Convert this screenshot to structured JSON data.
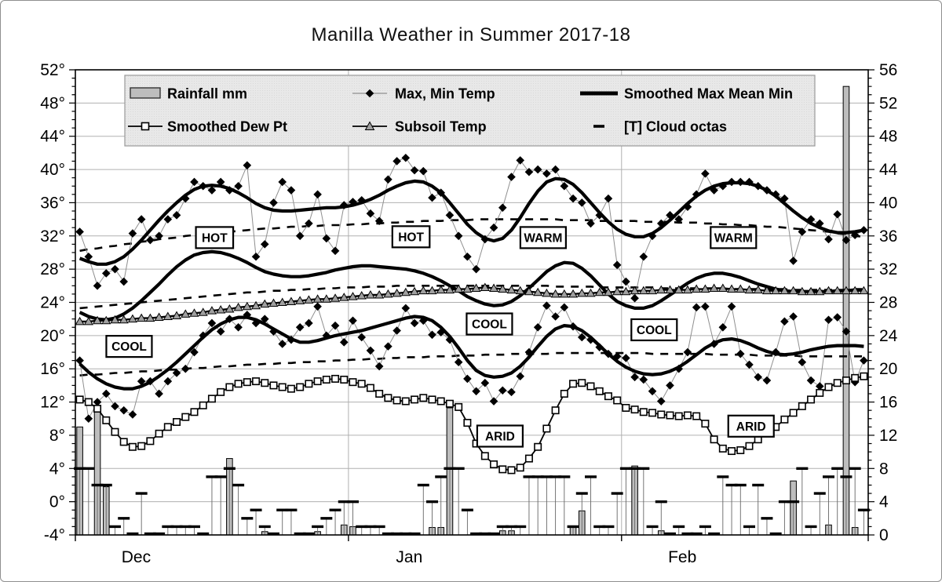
{
  "title": "Manilla Weather in Summer 2017-18",
  "legend": {
    "rows": [
      [
        {
          "name": "rainfall",
          "label": "Rainfall mm"
        },
        {
          "name": "maxmin",
          "label": "Max, Min Temp"
        },
        {
          "name": "smoothed",
          "label": "Smoothed  Max Mean Min"
        }
      ],
      [
        {
          "name": "dew",
          "label": "Smoothed Dew Pt"
        },
        {
          "name": "subsoil",
          "label": "Subsoil Temp"
        },
        {
          "name": "octas",
          "label": "[T] Cloud octas"
        }
      ]
    ]
  },
  "colors": {
    "bar_fill": "#bdbdbd",
    "grid": "#b0b0b0",
    "legend_bg": "#e8e8e8",
    "legend_border": "#9a9a9a",
    "subsoil_fill": "#a0a0a0",
    "connector": "#8f8f8f",
    "ink": "#000000"
  },
  "chart_data": {
    "type": "combo-weather",
    "title": "Manilla Weather in Summer 2017-18",
    "y_left": {
      "min": -4,
      "max": 52,
      "major_step": 4,
      "minor_step": 1,
      "tick_labels": [
        "52°",
        "48°",
        "44°",
        "40°",
        "36°",
        "32°",
        "28°",
        "24°",
        "20°",
        "16°",
        "12°",
        "8°",
        "4°",
        "0°",
        "-4°"
      ]
    },
    "y_right": {
      "min": 0,
      "max": 56,
      "major_step": 4,
      "minor_step": 1,
      "tick_labels": [
        "56",
        "52",
        "48",
        "44",
        "40",
        "36",
        "32",
        "28",
        "24",
        "20",
        "16",
        "12",
        "8",
        "4",
        "0"
      ]
    },
    "months": [
      {
        "label": "Dec",
        "days": 31
      },
      {
        "label": "Jan",
        "days": 31
      },
      {
        "label": "Feb",
        "days": 28
      }
    ],
    "series": {
      "rainfall_mm": [
        13,
        0,
        15.5,
        5.8,
        0,
        0,
        0,
        0,
        0,
        0,
        0,
        0,
        0,
        0,
        0,
        0,
        0,
        9.2,
        0,
        0,
        0,
        0.4,
        0,
        0,
        0,
        0,
        0,
        0.4,
        0,
        0,
        1.2,
        1,
        0,
        0,
        0,
        0,
        0,
        0,
        0,
        0,
        0.9,
        0.9,
        15.3,
        0,
        0,
        0,
        0,
        0,
        0.5,
        0.5,
        0,
        0,
        0,
        0,
        0,
        0,
        0.9,
        2.9,
        0,
        0,
        0,
        0,
        0,
        8.3,
        0,
        0,
        0.5,
        0,
        0,
        0,
        0,
        0,
        0,
        0,
        0,
        0,
        0,
        0,
        0,
        0,
        0,
        6.5,
        0,
        0,
        0,
        1.2,
        0,
        54,
        0.9,
        0
      ],
      "max_temp": [
        32.5,
        29.5,
        26,
        27.5,
        28,
        26.5,
        32.3,
        34,
        31.5,
        32,
        34,
        34.5,
        36.5,
        38.5,
        38,
        37.5,
        38.5,
        37.5,
        38,
        40.5,
        29.5,
        31,
        36,
        38.5,
        37.5,
        32,
        33.5,
        37,
        31.7,
        30.2,
        35.7,
        36.1,
        36.3,
        34.7,
        33.8,
        38.8,
        41,
        41.4,
        39.9,
        39.8,
        36.6,
        37.2,
        34.5,
        32,
        29.5,
        28,
        31.6,
        33,
        35.4,
        39.1,
        41.1,
        39.7,
        40,
        39.5,
        40,
        38,
        36.5,
        36,
        33.5,
        34.5,
        36.5,
        28.5,
        26.5,
        24.5,
        29.5,
        32,
        33.5,
        34.5,
        34,
        35.5,
        37,
        39.5,
        37.5,
        38,
        38.5,
        38.5,
        38.5,
        38,
        37.5,
        37,
        36.5,
        29,
        32.5,
        34,
        33.5,
        31.6,
        34.6,
        31.5,
        32.1,
        32.7
      ],
      "min_temp": [
        17,
        10,
        12,
        13,
        11.5,
        11,
        10.5,
        14.5,
        14.5,
        13,
        14.5,
        15.5,
        16,
        18,
        20,
        21.5,
        20.5,
        22,
        21,
        22.5,
        21.5,
        22,
        20.5,
        19,
        19.5,
        21,
        21.5,
        23.5,
        20,
        21.2,
        19.2,
        21.8,
        19.8,
        18.2,
        16.3,
        18.7,
        20.6,
        23.3,
        21.5,
        21.8,
        20.1,
        20.4,
        19.5,
        16.8,
        14.8,
        13.3,
        14.3,
        12.1,
        13.4,
        13.2,
        15.1,
        18,
        21,
        23.6,
        22.3,
        23.4,
        21.1,
        19.8,
        19.5,
        18.6,
        17.8,
        17.5,
        17.3,
        15,
        14.7,
        13.3,
        12.1,
        14,
        16,
        18,
        23.4,
        23.5,
        19,
        21,
        23.5,
        17.8,
        16.5,
        15,
        14.6,
        18,
        21.7,
        22.3,
        16.8,
        14.6,
        13.9,
        21.9,
        22.2,
        20.5,
        14.4,
        17
      ],
      "smoothed_max": [
        29.3,
        28.9,
        28.6,
        28.6,
        28.9,
        29.5,
        30.4,
        31.5,
        32.7,
        33.9,
        35,
        36,
        36.9,
        37.6,
        38,
        38.1,
        38,
        37.7,
        37.2,
        36.6,
        35.9,
        35.4,
        35.1,
        35,
        35,
        35.1,
        35.2,
        35.3,
        35.4,
        35.4,
        35.5,
        35.7,
        36,
        36.4,
        36.9,
        37.5,
        38,
        38.4,
        38.6,
        38.5,
        38,
        37.2,
        36,
        34.7,
        33.4,
        32.4,
        31.7,
        31.4,
        31.7,
        32.7,
        34.2,
        35.9,
        37.4,
        38.5,
        38.9,
        38.8,
        38.2,
        37.2,
        36,
        34.8,
        33.7,
        32.8,
        32.2,
        31.9,
        31.9,
        32.3,
        33,
        33.9,
        34.9,
        35.9,
        36.8,
        37.5,
        38,
        38.3,
        38.4,
        38.4,
        38.3,
        38,
        37.5,
        36.8,
        35.9,
        35,
        34.2,
        33.5,
        33,
        32.6,
        32.4,
        32.4,
        32.5,
        32.7
      ],
      "smoothed_mean": [
        22.8,
        22.3,
        22,
        21.9,
        22.1,
        22.6,
        23.3,
        24.2,
        25.2,
        26.2,
        27.3,
        28.3,
        29.1,
        29.7,
        30,
        30.1,
        30,
        29.7,
        29.3,
        28.8,
        28.2,
        27.7,
        27.4,
        27.2,
        27.1,
        27.1,
        27.2,
        27.4,
        27.6,
        27.9,
        28.1,
        28.3,
        28.4,
        28.4,
        28.3,
        28.2,
        28.1,
        28,
        27.8,
        27.5,
        27.1,
        26.6,
        26,
        25.4,
        24.7,
        24.2,
        23.8,
        23.6,
        23.7,
        24.1,
        24.8,
        25.7,
        26.7,
        27.7,
        28.4,
        28.8,
        28.7,
        28.1,
        27.2,
        26.1,
        25,
        24.1,
        23.6,
        23.3,
        23.3,
        23.6,
        24.2,
        24.9,
        25.6,
        26.3,
        26.9,
        27.3,
        27.5,
        27.5,
        27.3,
        27,
        26.6,
        26.2,
        25.9,
        25.6,
        25.4,
        25.3,
        25.3,
        25.3,
        25.3,
        25.3,
        25.4,
        25.4,
        25.5,
        25.5
      ],
      "smoothed_min": [
        16.6,
        15.6,
        14.8,
        14.2,
        13.8,
        13.6,
        13.6,
        13.9,
        14.4,
        15.1,
        15.9,
        16.8,
        17.8,
        18.8,
        19.8,
        20.7,
        21.4,
        21.9,
        22.2,
        22.2,
        21.9,
        21.4,
        20.8,
        20.2,
        19.6,
        19.2,
        19.2,
        19.4,
        19.7,
        20,
        20.2,
        20.4,
        20.6,
        20.9,
        21.2,
        21.5,
        21.8,
        22.1,
        22.3,
        22.2,
        21.8,
        21,
        19.9,
        18.5,
        17,
        15.8,
        15.2,
        15,
        15.1,
        15.5,
        16.3,
        17.4,
        18.7,
        19.9,
        20.8,
        21.2,
        21.1,
        20.6,
        19.8,
        18.8,
        17.8,
        16.9,
        16.2,
        15.7,
        15.4,
        15.3,
        15.4,
        15.7,
        16.2,
        16.9,
        17.7,
        18.5,
        19.1,
        19.5,
        19.6,
        19.4,
        19,
        18.5,
        18.1,
        17.8,
        17.7,
        17.8,
        18,
        18.3,
        18.5,
        18.7,
        18.8,
        18.8,
        18.8,
        18.7
      ],
      "normal_max_dashed": [
        30.2,
        30.4,
        30.5,
        30.7,
        30.8,
        31,
        31.1,
        31.3,
        31.4,
        31.6,
        31.7,
        31.8,
        32,
        32.1,
        32.2,
        32.3,
        32.4,
        32.5,
        32.6,
        32.7,
        32.8,
        32.9,
        32.9,
        33,
        33.1,
        33.1,
        33.2,
        33.2,
        33.3,
        33.3,
        33.3,
        33.4,
        33.4,
        33.5,
        33.5,
        33.6,
        33.6,
        33.7,
        33.7,
        33.8,
        33.8,
        33.8,
        33.9,
        33.9,
        33.9,
        34,
        34,
        34,
        34,
        34,
        34,
        34,
        34,
        34,
        34,
        33.9,
        33.9,
        33.9,
        33.9,
        33.8,
        33.8,
        33.8,
        33.8,
        33.8,
        33.7,
        33.7,
        33.7,
        33.7,
        33.6,
        33.6,
        33.6,
        33.5,
        33.5,
        33.4,
        33.4,
        33.3,
        33.3,
        33.2,
        33.1,
        33.1,
        33,
        32.9,
        32.8,
        32.7,
        32.6,
        32.5,
        32.3,
        32.2,
        32,
        31.9
      ],
      "normal_mean_dashed": [
        23.3,
        23.4,
        23.5,
        23.6,
        23.7,
        23.8,
        23.9,
        24,
        24.1,
        24.2,
        24.3,
        24.4,
        24.5,
        24.6,
        24.7,
        24.8,
        24.9,
        25,
        25.1,
        25.2,
        25.2,
        25.3,
        25.4,
        25.4,
        25.5,
        25.5,
        25.6,
        25.6,
        25.7,
        25.7,
        25.8,
        25.8,
        25.8,
        25.9,
        25.9,
        25.9,
        26,
        26,
        26,
        26,
        26,
        26,
        26,
        26,
        26,
        26,
        26,
        26,
        26,
        26,
        26,
        26,
        26,
        26,
        25.9,
        25.9,
        25.9,
        25.9,
        25.9,
        25.8,
        25.8,
        25.8,
        25.8,
        25.8,
        25.8,
        25.8,
        25.7,
        25.7,
        25.7,
        25.7,
        25.7,
        25.7,
        25.7,
        25.6,
        25.6,
        25.6,
        25.6,
        25.6,
        25.6,
        25.6,
        25.6,
        25.5,
        25.5,
        25.5,
        25.5,
        25.5,
        25.5,
        25.5,
        25.6,
        25.6
      ],
      "normal_min_dashed": [
        15.2,
        15.3,
        15.3,
        15.4,
        15.5,
        15.5,
        15.6,
        15.7,
        15.7,
        15.8,
        15.9,
        15.9,
        16,
        16.1,
        16.1,
        16.2,
        16.3,
        16.3,
        16.4,
        16.5,
        16.5,
        16.6,
        16.6,
        16.7,
        16.7,
        16.8,
        16.8,
        16.9,
        16.9,
        17,
        17,
        17.1,
        17.1,
        17.2,
        17.2,
        17.3,
        17.3,
        17.4,
        17.4,
        17.4,
        17.5,
        17.5,
        17.5,
        17.6,
        17.6,
        17.6,
        17.7,
        17.7,
        17.7,
        17.8,
        17.8,
        17.8,
        17.8,
        17.8,
        17.9,
        17.9,
        17.9,
        17.9,
        17.9,
        17.9,
        17.9,
        17.9,
        17.9,
        17.9,
        17.9,
        17.8,
        17.8,
        17.8,
        17.8,
        17.8,
        17.8,
        17.8,
        17.7,
        17.7,
        17.7,
        17.7,
        17.7,
        17.6,
        17.6,
        17.6,
        17.6,
        17.6,
        17.5,
        17.5,
        17.5,
        17.5,
        17.5,
        17.5,
        17.5,
        17.5
      ],
      "smoothed_dew_pt": [
        12.3,
        12,
        11.2,
        9.8,
        8.4,
        7.2,
        6.6,
        6.7,
        7.3,
        8.2,
        9,
        9.6,
        10.2,
        10.8,
        11.6,
        12.4,
        13.2,
        13.8,
        14.2,
        14.4,
        14.5,
        14.3,
        14,
        13.8,
        13.6,
        13.8,
        14.2,
        14.5,
        14.7,
        14.8,
        14.7,
        14.4,
        14.2,
        13.7,
        13,
        12.5,
        12.2,
        12.1,
        12.3,
        12.5,
        12.3,
        12.1,
        11.8,
        11.4,
        9.5,
        7,
        5.5,
        4.5,
        3.9,
        3.8,
        4.1,
        5.2,
        6.6,
        8.8,
        11,
        13,
        14.2,
        14.3,
        13.9,
        13.3,
        12.7,
        12.2,
        11.3,
        11.1,
        10.8,
        10.7,
        10.5,
        10.4,
        10.3,
        10.4,
        10.3,
        9.4,
        7.5,
        6.4,
        6.1,
        6.2,
        6.7,
        7.5,
        8.5,
        9,
        9.9,
        10.7,
        11.5,
        12.3,
        13.1,
        13.8,
        14.3,
        14.6,
        14.9,
        15.1
      ],
      "subsoil_temp": [
        21.7,
        21.7,
        21.8,
        21.8,
        21.9,
        21.9,
        22,
        22.1,
        22.1,
        22.2,
        22.3,
        22.4,
        22.6,
        22.7,
        22.8,
        23,
        23.1,
        23.2,
        23.4,
        23.5,
        23.6,
        23.8,
        23.9,
        24,
        24.1,
        24.2,
        24.3,
        24.4,
        24.4,
        24.5,
        24.6,
        24.7,
        24.8,
        24.9,
        24.9,
        25,
        25.1,
        25.2,
        25.3,
        25.4,
        25.4,
        25.5,
        25.5,
        25.6,
        25.6,
        25.7,
        25.8,
        25.7,
        25.6,
        25.5,
        25.4,
        25.3,
        25.2,
        25.1,
        25,
        25,
        25,
        25.1,
        25.1,
        25.2,
        25.2,
        25.3,
        25.3,
        25.4,
        25.4,
        25.4,
        25.5,
        25.5,
        25.5,
        25.5,
        25.6,
        25.6,
        25.7,
        25.7,
        25.6,
        25.6,
        25.5,
        25.5,
        25.4,
        25.4,
        25.4,
        25.4,
        25.3,
        25.3,
        25.3,
        25.4,
        25.4,
        25.4,
        25.4,
        25.4
      ],
      "cloud_octas": [
        8,
        8,
        6,
        6,
        1,
        2,
        0,
        5,
        0,
        0,
        1,
        1,
        1,
        1,
        0,
        7,
        7,
        8,
        6,
        2,
        3,
        1,
        0,
        3,
        3,
        0,
        0,
        1,
        2,
        3,
        4,
        4,
        1,
        1,
        1,
        0,
        0,
        0,
        0,
        6,
        4,
        7,
        8,
        8,
        3,
        0,
        0,
        0,
        1,
        1,
        1,
        7,
        7,
        7,
        7,
        7,
        1,
        5,
        7,
        1,
        1,
        5,
        8,
        8,
        8,
        1,
        4,
        0,
        1,
        0,
        0,
        1,
        0,
        7,
        6,
        6,
        1,
        6,
        2,
        0,
        4,
        4,
        8,
        1,
        5,
        7,
        8,
        7,
        8,
        3
      ]
    },
    "annotations": [
      {
        "label": "HOT",
        "day": 15.3,
        "temp": 31.8
      },
      {
        "label": "HOT",
        "day": 37.6,
        "temp": 31.9
      },
      {
        "label": "WARM",
        "day": 52.6,
        "temp": 31.8
      },
      {
        "label": "WARM",
        "day": 74.2,
        "temp": 31.8
      },
      {
        "label": "COOL",
        "day": 5.6,
        "temp": 18.7
      },
      {
        "label": "COOL",
        "day": 46.5,
        "temp": 21.4
      },
      {
        "label": "COOL",
        "day": 65.2,
        "temp": 20.7
      },
      {
        "label": "ARID",
        "day": 47.7,
        "temp": 7.9
      },
      {
        "label": "ARID",
        "day": 76.2,
        "temp": 9.1
      }
    ],
    "layout_hints": {
      "grid": "on",
      "legend_position": "top-inside",
      "x_gridlines": "month-boundaries"
    }
  }
}
